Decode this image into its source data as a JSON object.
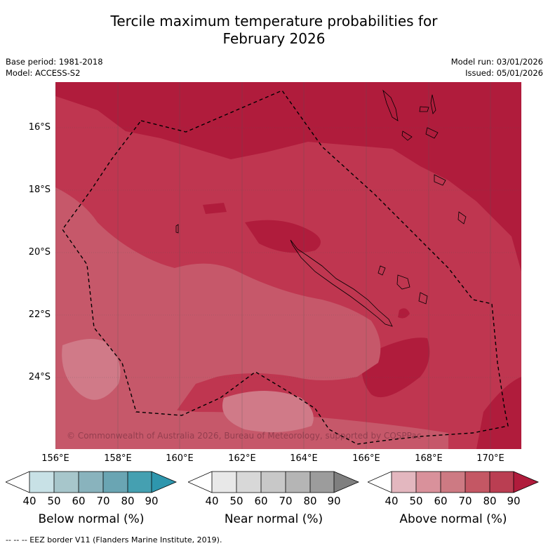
{
  "title": {
    "line1": "Tercile maximum temperature probabilities for",
    "line2": "February 2026"
  },
  "meta": {
    "base_period": "Base period: 1981-2018",
    "model": "Model: ACCESS-S2",
    "model_run": "Model run: 03/01/2026",
    "issued": "Issued: 05/01/2026"
  },
  "map": {
    "lat_labels": [
      "16°S",
      "18°S",
      "20°S",
      "22°S",
      "24°S"
    ],
    "lon_labels": [
      "156°E",
      "158°E",
      "160°E",
      "162°E",
      "164°E",
      "166°E",
      "168°E",
      "170°E"
    ],
    "copyright": "© Commonwealth of Australia 2026, Bureau of Meteorology, supported by COSPPac",
    "colors": {
      "above_80_90": "#bf3650",
      "above_90plus": "#b01c3c",
      "above_70_80": "#c6586a",
      "above_60_70": "#d07a88"
    }
  },
  "colorbars": [
    {
      "title": "Below normal (%)",
      "ticks": [
        "40",
        "50",
        "60",
        "70",
        "80",
        "90"
      ],
      "colors": [
        "#ffffff",
        "#c8e1e6",
        "#a7c6cb",
        "#89b3bd",
        "#6aa5b3",
        "#45a0b1",
        "#2e96ad"
      ]
    },
    {
      "title": "Near normal (%)",
      "ticks": [
        "40",
        "50",
        "60",
        "70",
        "80",
        "90"
      ],
      "colors": [
        "#ffffff",
        "#e8e8e8",
        "#d8d8d8",
        "#c8c8c8",
        "#b5b5b5",
        "#9c9c9c",
        "#7f7f7f"
      ]
    },
    {
      "title": "Above normal (%)",
      "ticks": [
        "40",
        "50",
        "60",
        "70",
        "80",
        "90"
      ],
      "colors": [
        "#ffffff",
        "#e3b7bf",
        "#d9919b",
        "#cd7a83",
        "#c45764",
        "#ba3e52",
        "#b01c3c"
      ]
    }
  ],
  "footer": "--  --  -- EEZ border V11 (Flanders Marine Institute, 2019)."
}
